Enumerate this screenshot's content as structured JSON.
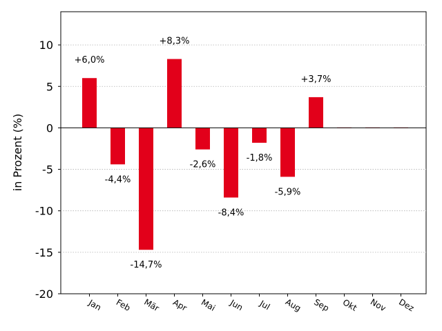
{
  "chart_data": {
    "type": "bar",
    "categories": [
      "Jan",
      "Feb",
      "Mär",
      "Apr",
      "Mai",
      "Jun",
      "Jul",
      "Aug",
      "Sep",
      "Okt",
      "Nov",
      "Dez"
    ],
    "values": [
      6.0,
      -4.4,
      -14.7,
      8.3,
      -2.6,
      -8.4,
      -1.8,
      -5.9,
      3.7,
      null,
      null,
      null
    ],
    "data_labels": [
      "+6,0%",
      "-4,4%",
      "-14,7%",
      "+8,3%",
      "-2,6%",
      "-8,4%",
      "-1,8%",
      "-5,9%",
      "+3,7%",
      "",
      "",
      ""
    ],
    "title": "",
    "xlabel": "",
    "ylabel": "in Prozent (%)",
    "ylim": [
      -20,
      14
    ],
    "yticks": [
      -20,
      -15,
      -10,
      -5,
      0,
      5,
      10
    ],
    "ytick_labels": [
      "-20",
      "-15",
      "-10",
      "-5",
      "0",
      "5",
      "10"
    ],
    "grid": true,
    "legend": "none",
    "bar_color": "#e2001a"
  }
}
